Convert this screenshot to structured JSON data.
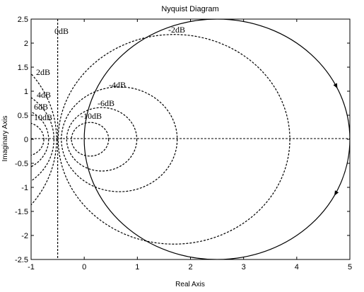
{
  "chart_data": {
    "type": "line",
    "title": "Nyquist Diagram",
    "xlabel": "Real Axis",
    "ylabel": "Imaginary Axis",
    "xlim": [
      -1,
      5
    ],
    "ylim": [
      -2.5,
      2.5
    ],
    "xticks": [
      "-1",
      "0",
      "1",
      "2",
      "3",
      "4",
      "5"
    ],
    "yticks": [
      "2.5",
      "2",
      "1.5",
      "1",
      "0.5",
      "0",
      "-0.5",
      "-1",
      "-1.5",
      "-2",
      "-2.5"
    ],
    "grid": false,
    "nyquist_curve": {
      "center": [
        2.5,
        0
      ],
      "radius": 2.5,
      "arrow_direction": "clockwise"
    },
    "m_circles": [
      {
        "label": "0dB",
        "type": "vertical",
        "x": -0.5
      },
      {
        "label": "-2dB",
        "center": [
          1.69,
          0
        ],
        "radius": 2.18
      },
      {
        "label": "-4dB",
        "center": [
          0.66,
          0
        ],
        "radius": 1.09
      },
      {
        "label": "-6dB",
        "center": [
          0.33,
          0
        ],
        "radius": 0.66
      },
      {
        "label": "-10dB",
        "center": [
          0.11,
          0
        ],
        "radius": 0.35
      },
      {
        "label": "2dB",
        "center": [
          -2.7,
          0
        ],
        "radius": 2.18
      },
      {
        "label": "4dB",
        "center": [
          -1.66,
          0
        ],
        "radius": 1.09
      },
      {
        "label": "6dB",
        "center": [
          -1.33,
          0
        ],
        "radius": 0.66
      },
      {
        "label": "10dB",
        "center": [
          -1.11,
          0
        ],
        "radius": 0.35
      }
    ]
  }
}
